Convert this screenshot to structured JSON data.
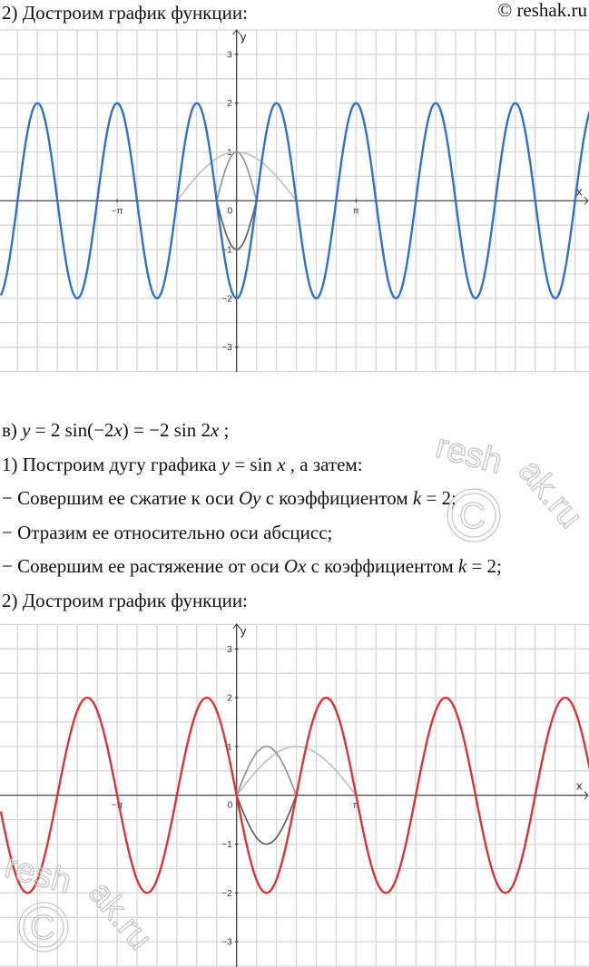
{
  "header": {
    "copyright": "© reshak.ru"
  },
  "watermark": {
    "text": "reshak.ru",
    "symbol": "©"
  },
  "text": {
    "heading_top": [
      {
        "t": "2) Достроим график функции:"
      }
    ],
    "lines": [
      [
        {
          "t": "в) "
        },
        {
          "t": "y",
          "i": true
        },
        {
          "t": " = 2 sin(−2"
        },
        {
          "t": "x",
          "i": true
        },
        {
          "t": ") = −2 sin 2"
        },
        {
          "t": "x",
          "i": true
        },
        {
          "t": " ;"
        }
      ],
      [
        {
          "t": "1) Построим дугу графика "
        },
        {
          "t": "y",
          "i": true
        },
        {
          "t": " = sin "
        },
        {
          "t": "x",
          "i": true
        },
        {
          "t": " , а затем:"
        }
      ],
      [
        {
          "t": "− Совершим ее сжатие к оси "
        },
        {
          "t": "Oy",
          "i": true
        },
        {
          "t": " с коэффициентом "
        },
        {
          "t": "k",
          "i": true
        },
        {
          "t": " = 2;"
        }
      ],
      [
        {
          "t": "− Отразим ее относительно оси абсцисс;"
        }
      ],
      [
        {
          "t": "− Совершим ее растяжение от оси "
        },
        {
          "t": "Ox",
          "i": true
        },
        {
          "t": " с коэффициентом "
        },
        {
          "t": "k",
          "i": true
        },
        {
          "t": " = 2;"
        }
      ],
      [
        {
          "t": "2) Достроим график функции:"
        }
      ]
    ]
  },
  "colors": {
    "blue": "#2f72c8",
    "red": "#d9343a",
    "light_gray": "#c4c4c4",
    "mid_gray": "#9a9a9a",
    "dark_gray": "#666666",
    "grid": "#d6d6d6",
    "axis": "#333333"
  },
  "chart_data": [
    {
      "type": "line",
      "xlabel": "x",
      "ylabel": "y",
      "x_ticks": [
        {
          "value": -3.14159,
          "label": "−π"
        },
        {
          "value": 3.14159,
          "label": "π"
        }
      ],
      "origin_label": "0",
      "y_ticks": [
        {
          "value": 3,
          "label": "3"
        },
        {
          "value": 2,
          "label": "2"
        },
        {
          "value": 1,
          "label": "1"
        },
        {
          "value": -1,
          "label": "−1"
        },
        {
          "value": -2,
          "label": "−2"
        },
        {
          "value": -3,
          "label": "−3"
        }
      ],
      "grid": true,
      "x_grid_step": "π/6",
      "y_grid_step": 0.5,
      "xlim": [
        -6.2,
        9.3
      ],
      "ylim": [
        -3.5,
        3.5
      ],
      "series": [
        {
          "expression": "cos(x)",
          "domain": [
            -1.5708,
            1.5708
          ],
          "color": "light_gray"
        },
        {
          "expression": "cos(3x)",
          "domain": [
            -0.5236,
            0.5236
          ],
          "color": "mid_gray"
        },
        {
          "expression": "-cos(3x)",
          "domain": [
            -0.5236,
            0.5236
          ],
          "color": "dark_gray"
        },
        {
          "expression": "-2cos(3x)",
          "domain": [
            -6.2,
            9.3
          ],
          "color": "blue"
        }
      ]
    },
    {
      "type": "line",
      "xlabel": "x",
      "ylabel": "y",
      "x_ticks": [
        {
          "value": -3.14159,
          "label": "−π"
        },
        {
          "value": 3.14159,
          "label": "π"
        }
      ],
      "origin_label": "0",
      "y_ticks": [
        {
          "value": 3,
          "label": "3"
        },
        {
          "value": 2,
          "label": "2"
        },
        {
          "value": 1,
          "label": "1"
        },
        {
          "value": -1,
          "label": "−1"
        },
        {
          "value": -2,
          "label": "−2"
        },
        {
          "value": -3,
          "label": "−3"
        }
      ],
      "grid": true,
      "x_grid_step": "π/6",
      "y_grid_step": 0.5,
      "xlim": [
        -6.2,
        9.3
      ],
      "ylim": [
        -3.5,
        3.5
      ],
      "series": [
        {
          "expression": "sin(x)",
          "domain": [
            0,
            3.14159
          ],
          "color": "light_gray"
        },
        {
          "expression": "sin(2x)",
          "domain": [
            0,
            1.5708
          ],
          "color": "mid_gray"
        },
        {
          "expression": "-sin(2x)",
          "domain": [
            0,
            1.5708
          ],
          "color": "dark_gray"
        },
        {
          "expression": "-2sin(2x)",
          "domain": [
            -6.2,
            9.3
          ],
          "color": "red"
        }
      ]
    }
  ]
}
